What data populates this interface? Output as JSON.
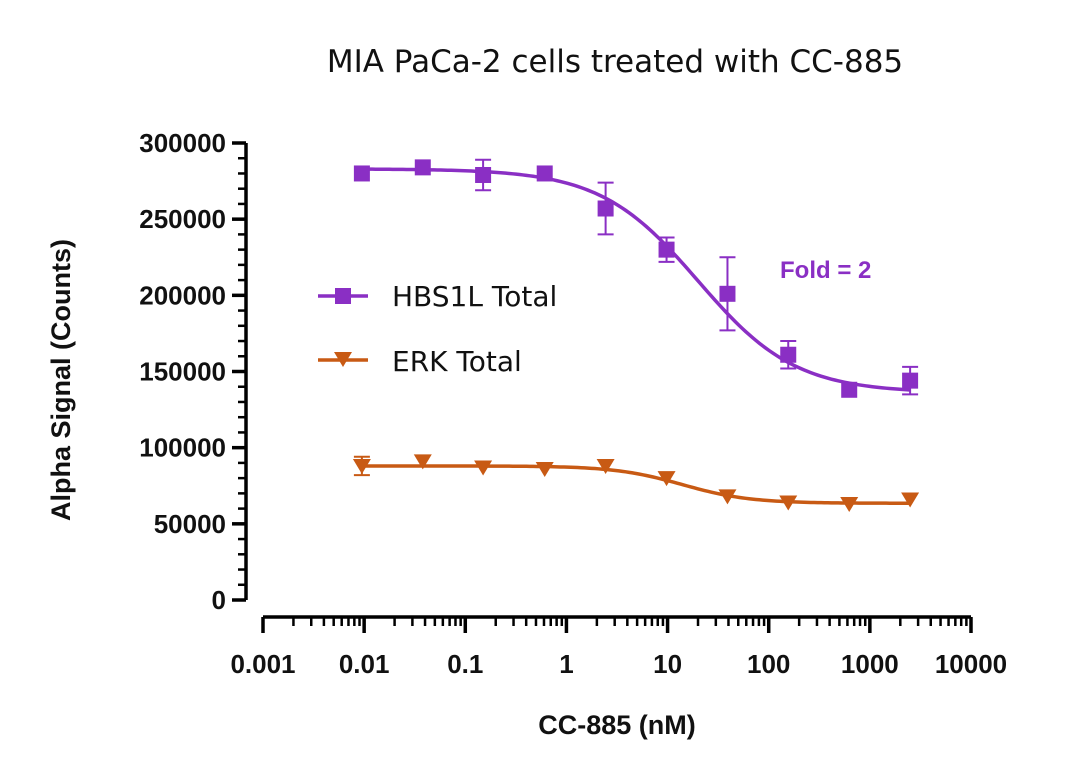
{
  "chart_data": {
    "type": "scatter",
    "title": "MIA PaCa-2 cells treated with CC-885",
    "xlabel": "CC-885 (nM)",
    "ylabel": "Alpha Signal (Counts)",
    "x_scale": "log",
    "xlim": [
      0.001,
      10000
    ],
    "ylim": [
      0,
      300000
    ],
    "x_ticks": [
      0.001,
      0.01,
      0.1,
      1,
      10,
      100,
      1000,
      10000
    ],
    "x_tick_labels": [
      "0.001",
      "0.01",
      "0.1",
      "1",
      "10",
      "100",
      "1000",
      "10000"
    ],
    "y_ticks": [
      0,
      50000,
      100000,
      150000,
      200000,
      250000,
      300000
    ],
    "y_tick_labels": [
      "0",
      "50000",
      "100000",
      "150000",
      "200000",
      "250000",
      "300000"
    ],
    "grid": false,
    "legend_position": "left-middle",
    "annotation": "Fold = 2",
    "series": [
      {
        "name": "HBS1L Total",
        "color": "#8a2fc4",
        "marker": "square",
        "x": [
          0.0095,
          0.038,
          0.15,
          0.61,
          2.44,
          9.77,
          39.1,
          156,
          625,
          2500
        ],
        "y": [
          280000,
          284000,
          279000,
          280000,
          257000,
          230000,
          201000,
          161000,
          138000,
          144000
        ],
        "error": [
          0,
          0,
          10000,
          0,
          17000,
          8000,
          24000,
          9000,
          0,
          9000
        ],
        "fit": {
          "top": 283000,
          "bottom": 136000,
          "ec50": 20,
          "hill": 0.9
        }
      },
      {
        "name": "ERK Total",
        "color": "#c85a14",
        "marker": "triangle-down",
        "x": [
          0.0095,
          0.038,
          0.15,
          0.61,
          2.44,
          9.77,
          39.1,
          156,
          625,
          2500
        ],
        "y": [
          88000,
          91000,
          87000,
          86000,
          88000,
          80000,
          68000,
          64000,
          63000,
          66000
        ],
        "error": [
          6000,
          0,
          0,
          0,
          0,
          0,
          0,
          0,
          0,
          0
        ],
        "fit": {
          "top": 88000,
          "bottom": 63500,
          "ec50": 14,
          "hill": 1.3
        }
      }
    ]
  }
}
